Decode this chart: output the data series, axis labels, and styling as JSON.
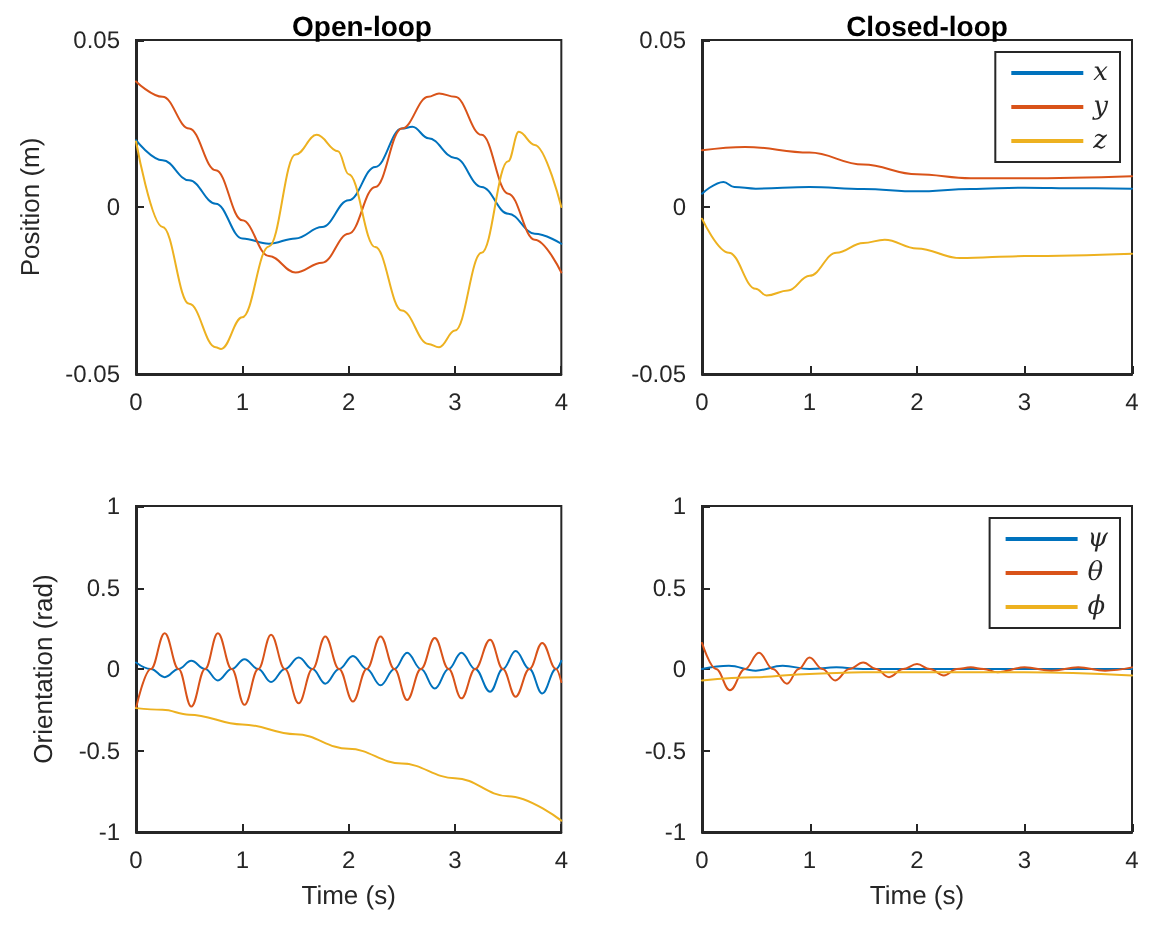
{
  "chart_data": [
    {
      "type": "line",
      "title": "Open-loop",
      "ylabel": "Position (m)",
      "xlim": [
        0,
        4
      ],
      "xticks": [
        0,
        1,
        2,
        3,
        4
      ],
      "ylim": [
        -0.05,
        0.05
      ],
      "yticks": [
        -0.05,
        0,
        0.05
      ],
      "marker": "none",
      "legend": false,
      "series": [
        {
          "color": "#0072bd",
          "x": [
            0,
            0.25,
            0.5,
            0.75,
            1,
            1.25,
            1.5,
            1.75,
            2,
            2.25,
            2.5,
            2.6,
            2.75,
            3,
            3.25,
            3.5,
            3.75,
            4
          ],
          "values": [
            0.02,
            0.014,
            0.008,
            0.001,
            -0.0094,
            -0.011,
            -0.0094,
            -0.006,
            0.002,
            0.012,
            0.0235,
            0.024,
            0.0206,
            0.0147,
            0.006,
            -0.002,
            -0.008,
            -0.011
          ]
        },
        {
          "color": "#d95319",
          "x": [
            0,
            0.25,
            0.5,
            0.75,
            1,
            1.25,
            1.5,
            1.75,
            2,
            2.25,
            2.5,
            2.75,
            2.85,
            3,
            3.25,
            3.5,
            3.75,
            4
          ],
          "values": [
            0.0376,
            0.033,
            0.0235,
            0.011,
            -0.004,
            -0.0147,
            -0.0196,
            -0.0167,
            -0.008,
            0.006,
            0.0235,
            0.033,
            0.034,
            0.033,
            0.0216,
            0.004,
            -0.0098,
            -0.0196
          ]
        },
        {
          "color": "#edb120",
          "x": [
            0,
            0.25,
            0.5,
            0.75,
            0.8,
            1,
            1.25,
            1.5,
            1.7,
            1.9,
            2,
            2.25,
            2.5,
            2.75,
            2.85,
            3,
            3.25,
            3.5,
            3.6,
            3.75,
            4
          ],
          "values": [
            0.0196,
            -0.006,
            -0.029,
            -0.042,
            -0.0425,
            -0.033,
            -0.0118,
            0.0157,
            0.0216,
            0.0167,
            0.0098,
            -0.012,
            -0.031,
            -0.041,
            -0.042,
            -0.037,
            -0.0137,
            0.0137,
            0.0225,
            0.0186,
            0
          ]
        }
      ]
    },
    {
      "type": "line",
      "title": "Closed-loop",
      "xlim": [
        0,
        4
      ],
      "xticks": [
        0,
        1,
        2,
        3,
        4
      ],
      "ylim": [
        -0.05,
        0.05
      ],
      "yticks": [
        -0.05,
        0,
        0.05
      ],
      "marker": "none",
      "legend": "top right",
      "series": [
        {
          "name": "x",
          "color": "#0072bd",
          "x": [
            0,
            0.2,
            0.3,
            0.5,
            1,
            1.5,
            2,
            2.5,
            3,
            3.5,
            4
          ],
          "values": [
            0.004,
            0.0075,
            0.006,
            0.0055,
            0.006,
            0.0054,
            0.0047,
            0.0054,
            0.0058,
            0.0056,
            0.0055
          ]
        },
        {
          "name": "y",
          "color": "#d95319",
          "x": [
            0,
            0.4,
            1,
            1.5,
            2,
            2.5,
            3,
            4
          ],
          "values": [
            0.017,
            0.018,
            0.0163,
            0.0127,
            0.0098,
            0.0086,
            0.0086,
            0.0092
          ]
        },
        {
          "name": "z",
          "color": "#edb120",
          "x": [
            0,
            0.25,
            0.5,
            0.6,
            0.8,
            1,
            1.25,
            1.5,
            1.7,
            2,
            2.4,
            3,
            4
          ],
          "values": [
            -0.0035,
            -0.0137,
            -0.0245,
            -0.0265,
            -0.025,
            -0.0206,
            -0.0137,
            -0.0108,
            -0.0098,
            -0.0124,
            -0.0153,
            -0.0147,
            -0.014
          ]
        }
      ]
    },
    {
      "type": "line",
      "xlabel": "Time (s)",
      "ylabel": "Orientation (rad)",
      "xlim": [
        0,
        4
      ],
      "xticks": [
        0,
        1,
        2,
        3,
        4
      ],
      "ylim": [
        -1,
        1
      ],
      "yticks": [
        -1,
        -0.5,
        0,
        0.5,
        1
      ],
      "marker": "none",
      "legend": false,
      "series": [
        {
          "color": "#0072bd",
          "x": [
            0,
            0.14,
            0.27,
            0.4,
            0.52,
            0.65,
            0.77,
            0.9,
            1.02,
            1.15,
            1.27,
            1.4,
            1.53,
            1.66,
            1.78,
            1.91,
            2.04,
            2.17,
            2.3,
            2.43,
            2.55,
            2.68,
            2.81,
            2.94,
            3.06,
            3.19,
            3.33,
            3.45,
            3.57,
            3.7,
            3.82,
            3.95,
            4
          ],
          "values": [
            0.04,
            0,
            -0.05,
            0,
            0.05,
            0,
            -0.07,
            0,
            0.06,
            0,
            -0.08,
            0,
            0.07,
            0,
            -0.09,
            0,
            0.08,
            0,
            -0.1,
            0,
            0.1,
            0,
            -0.12,
            0,
            0.1,
            0,
            -0.14,
            0,
            0.11,
            0,
            -0.15,
            0,
            0.05
          ]
        },
        {
          "color": "#d95319",
          "x": [
            0,
            0.14,
            0.27,
            0.4,
            0.52,
            0.65,
            0.77,
            0.9,
            1.02,
            1.15,
            1.27,
            1.4,
            1.53,
            1.66,
            1.78,
            1.91,
            2.04,
            2.17,
            2.3,
            2.43,
            2.55,
            2.68,
            2.81,
            2.94,
            3.06,
            3.19,
            3.33,
            3.45,
            3.57,
            3.7,
            3.82,
            3.95,
            4
          ],
          "values": [
            -0.24,
            0,
            0.22,
            0,
            -0.23,
            0,
            0.22,
            0,
            -0.22,
            0,
            0.21,
            0,
            -0.21,
            0,
            0.2,
            0,
            -0.2,
            0,
            0.2,
            0,
            -0.19,
            0,
            0.19,
            0,
            -0.18,
            0,
            0.18,
            0,
            -0.17,
            0,
            0.16,
            0,
            -0.08
          ]
        },
        {
          "color": "#edb120",
          "x": [
            0,
            0.25,
            0.5,
            1,
            1.5,
            2,
            2.5,
            3,
            3.5,
            4
          ],
          "values": [
            -0.24,
            -0.25,
            -0.28,
            -0.34,
            -0.4,
            -0.49,
            -0.58,
            -0.67,
            -0.78,
            -0.93
          ]
        }
      ]
    },
    {
      "type": "line",
      "xlabel": "Time (s)",
      "xlim": [
        0,
        4
      ],
      "xticks": [
        0,
        1,
        2,
        3,
        4
      ],
      "ylim": [
        -1,
        1
      ],
      "yticks": [
        -1,
        -0.5,
        0,
        0.5,
        1
      ],
      "marker": "none",
      "legend": "top right",
      "series": [
        {
          "name": "ψ",
          "color": "#0072bd",
          "x": [
            0,
            0.25,
            0.5,
            0.75,
            1,
            1.25,
            1.5,
            2,
            2.5,
            3,
            3.5,
            4
          ],
          "values": [
            0,
            0.02,
            -0.01,
            0.02,
            0,
            0.01,
            0,
            0,
            0,
            0,
            0,
            0
          ]
        },
        {
          "name": "θ",
          "color": "#d95319",
          "x": [
            0,
            0.13,
            0.26,
            0.4,
            0.53,
            0.66,
            0.79,
            0.9,
            1,
            1.12,
            1.24,
            1.37,
            1.5,
            1.62,
            1.74,
            1.87,
            2,
            2.12,
            2.25,
            2.37,
            2.5,
            2.62,
            2.75,
            3,
            3.25,
            3.5,
            3.75,
            4
          ],
          "values": [
            0.16,
            0,
            -0.13,
            0,
            0.1,
            0,
            -0.09,
            0,
            0.07,
            0,
            -0.07,
            0,
            0.04,
            0,
            -0.05,
            0,
            0.03,
            0,
            -0.04,
            0,
            0.01,
            0,
            -0.02,
            0.01,
            -0.01,
            0.01,
            -0.01,
            0.01
          ]
        },
        {
          "name": "ϕ",
          "color": "#edb120",
          "x": [
            0,
            0.5,
            1,
            1.5,
            2,
            3,
            4
          ],
          "values": [
            -0.07,
            -0.05,
            -0.03,
            -0.02,
            -0.02,
            -0.02,
            -0.04
          ]
        }
      ]
    }
  ]
}
